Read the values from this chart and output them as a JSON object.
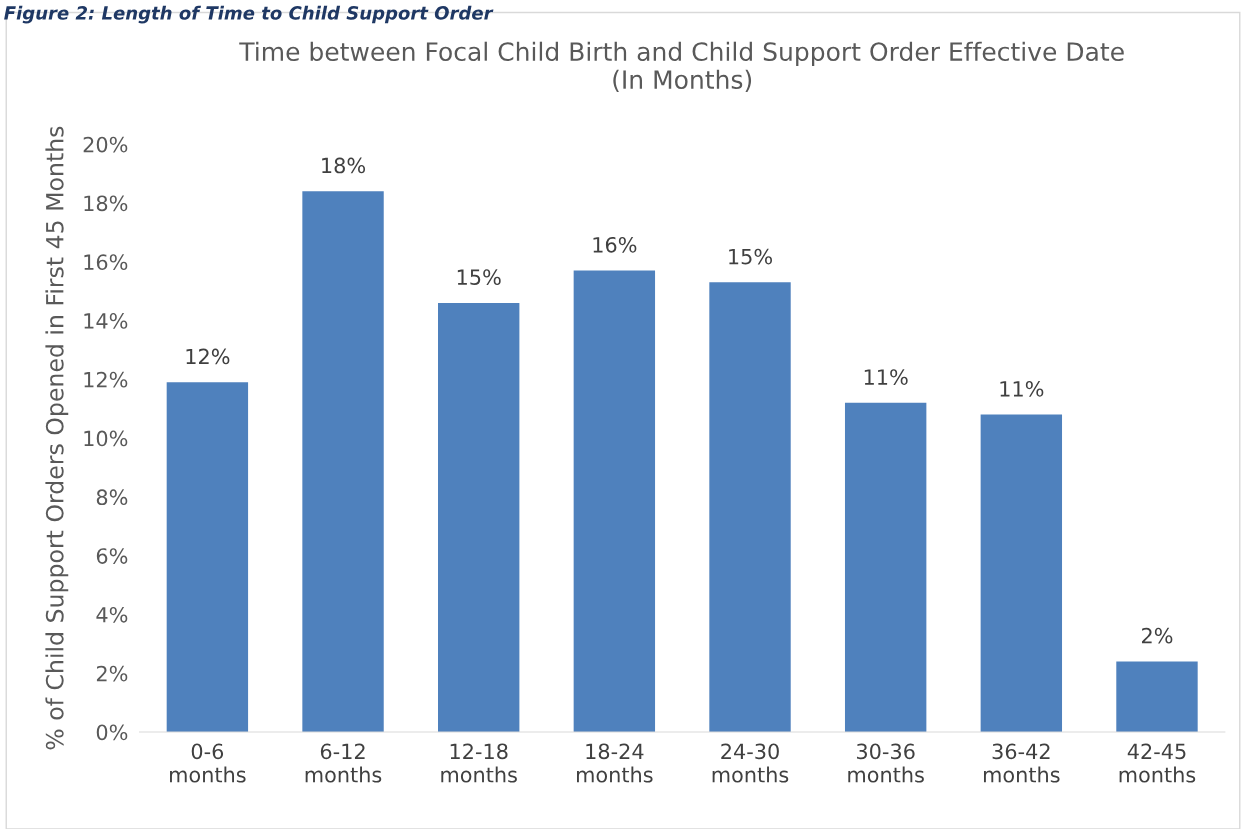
{
  "chart_data": {
    "type": "bar",
    "title": "Time between Focal Child Birth and Child Support Order Effective Date\n(In Months)",
    "ylabel": "% of Child Support Orders Opened in First 45 Months",
    "annotations": [
      "Figure 2: Length of Time to Child Support Order"
    ],
    "categories": [
      "0-6\nmonths",
      "6-12\nmonths",
      "12-18\nmonths",
      "18-24\nmonths",
      "24-30\nmonths",
      "30-36\nmonths",
      "36-42\nmonths",
      "42-45\nmonths"
    ],
    "values": [
      11.9,
      18.4,
      14.6,
      15.7,
      15.3,
      11.2,
      10.8,
      2.4
    ],
    "value_labels": [
      "12%",
      "18%",
      "15%",
      "16%",
      "15%",
      "11%",
      "11%",
      "2%"
    ],
    "color": "#4f81bd",
    "ylim": [
      0,
      20
    ],
    "yticks": [
      {
        "value": 0,
        "label": "0%"
      },
      {
        "value": 2,
        "label": "2%"
      },
      {
        "value": 4,
        "label": "4%"
      },
      {
        "value": 6,
        "label": "6%"
      },
      {
        "value": 8,
        "label": "8%"
      },
      {
        "value": 10,
        "label": "10%"
      },
      {
        "value": 12,
        "label": "12%"
      },
      {
        "value": 14,
        "label": "14%"
      },
      {
        "value": 16,
        "label": "16%"
      },
      {
        "value": 18,
        "label": "18%"
      },
      {
        "value": 20,
        "label": "20%"
      }
    ],
    "grid": false,
    "legend": false
  }
}
